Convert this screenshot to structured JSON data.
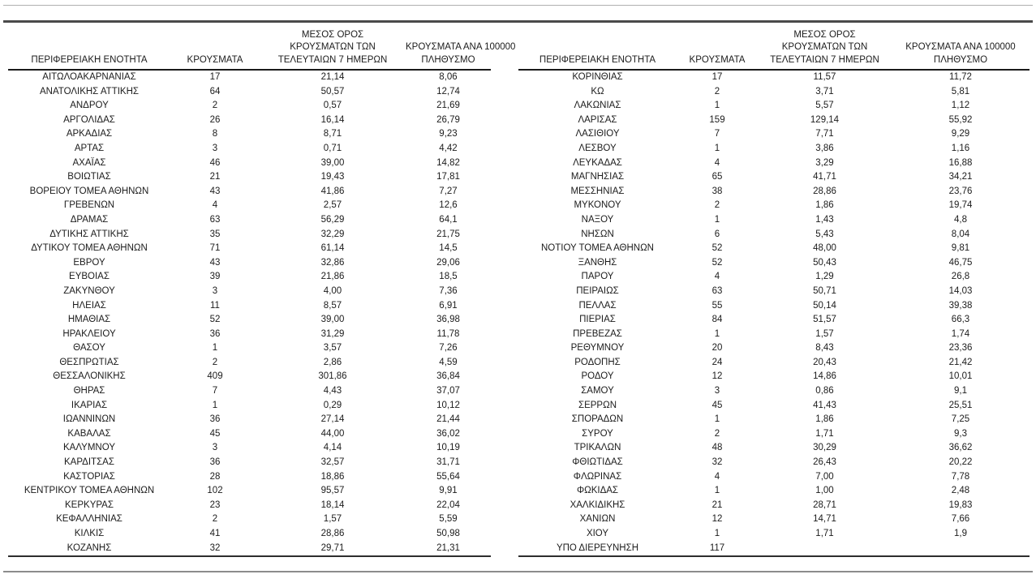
{
  "table": {
    "headers": {
      "region": "ΠΕΡΙΦΕΡΕΙΑΚΗ ΕΝΟΤΗΤΑ",
      "cases": "ΚΡΟΥΣΜΑΤΑ",
      "avg7_lines": [
        "ΜΕΣΟΣ ΟΡΟΣ",
        "ΚΡΟΥΣΜΑΤΩΝ ΤΩΝ",
        "ΤΕΛΕΥΤΑΙΩΝ 7 ΗΜΕΡΩΝ"
      ],
      "per100k_lines": [
        "ΚΡΟΥΣΜΑΤΑ ΑΝΑ 100000",
        "ΠΛΗΘΥΣΜΟ"
      ]
    },
    "left_rows": [
      [
        "ΑΙΤΩΛΟΑΚΑΡΝΑΝΙΑΣ",
        "17",
        "21,14",
        "8,06"
      ],
      [
        "ΑΝΑΤΟΛΙΚΗΣ ΑΤΤΙΚΗΣ",
        "64",
        "50,57",
        "12,74"
      ],
      [
        "ΑΝΔΡΟΥ",
        "2",
        "0,57",
        "21,69"
      ],
      [
        "ΑΡΓΟΛΙΔΑΣ",
        "26",
        "16,14",
        "26,79"
      ],
      [
        "ΑΡΚΑΔΙΑΣ",
        "8",
        "8,71",
        "9,23"
      ],
      [
        "ΑΡΤΑΣ",
        "3",
        "0,71",
        "4,42"
      ],
      [
        "ΑΧΑΪΑΣ",
        "46",
        "39,00",
        "14,82"
      ],
      [
        "ΒΟΙΩΤΙΑΣ",
        "21",
        "19,43",
        "17,81"
      ],
      [
        "ΒΟΡΕΙΟΥ ΤΟΜΕΑ ΑΘΗΝΩΝ",
        "43",
        "41,86",
        "7,27"
      ],
      [
        "ΓΡΕΒΕΝΩΝ",
        "4",
        "2,57",
        "12,6"
      ],
      [
        "ΔΡΑΜΑΣ",
        "63",
        "56,29",
        "64,1"
      ],
      [
        "ΔΥΤΙΚΗΣ ΑΤΤΙΚΗΣ",
        "35",
        "32,29",
        "21,75"
      ],
      [
        "ΔΥΤΙΚΟΥ ΤΟΜΕΑ ΑΘΗΝΩΝ",
        "71",
        "61,14",
        "14,5"
      ],
      [
        "ΕΒΡΟΥ",
        "43",
        "32,86",
        "29,06"
      ],
      [
        "ΕΥΒΟΙΑΣ",
        "39",
        "21,86",
        "18,5"
      ],
      [
        "ΖΑΚΥΝΘΟΥ",
        "3",
        "4,00",
        "7,36"
      ],
      [
        "ΗΛΕΙΑΣ",
        "11",
        "8,57",
        "6,91"
      ],
      [
        "ΗΜΑΘΙΑΣ",
        "52",
        "39,00",
        "36,98"
      ],
      [
        "ΗΡΑΚΛΕΙΟΥ",
        "36",
        "31,29",
        "11,78"
      ],
      [
        "ΘΑΣΟΥ",
        "1",
        "3,57",
        "7,26"
      ],
      [
        "ΘΕΣΠΡΩΤΙΑΣ",
        "2",
        "2,86",
        "4,59"
      ],
      [
        "ΘΕΣΣΑΛΟΝΙΚΗΣ",
        "409",
        "301,86",
        "36,84"
      ],
      [
        "ΘΗΡΑΣ",
        "7",
        "4,43",
        "37,07"
      ],
      [
        "ΙΚΑΡΙΑΣ",
        "1",
        "0,29",
        "10,12"
      ],
      [
        "ΙΩΑΝΝΙΝΩΝ",
        "36",
        "27,14",
        "21,44"
      ],
      [
        "ΚΑΒΑΛΑΣ",
        "45",
        "44,00",
        "36,02"
      ],
      [
        "ΚΑΛΥΜΝΟΥ",
        "3",
        "4,14",
        "10,19"
      ],
      [
        "ΚΑΡΔΙΤΣΑΣ",
        "36",
        "32,57",
        "31,71"
      ],
      [
        "ΚΑΣΤΟΡΙΑΣ",
        "28",
        "18,86",
        "55,64"
      ],
      [
        "ΚΕΝΤΡΙΚΟΥ ΤΟΜΕΑ ΑΘΗΝΩΝ",
        "102",
        "95,57",
        "9,91"
      ],
      [
        "ΚΕΡΚΥΡΑΣ",
        "23",
        "18,14",
        "22,04"
      ],
      [
        "ΚΕΦΑΛΛΗΝΙΑΣ",
        "2",
        "1,57",
        "5,59"
      ],
      [
        "ΚΙΛΚΙΣ",
        "41",
        "28,86",
        "50,98"
      ],
      [
        "ΚΟΖΑΝΗΣ",
        "32",
        "29,71",
        "21,31"
      ]
    ],
    "right_rows": [
      [
        "ΚΟΡΙΝΘΙΑΣ",
        "17",
        "11,57",
        "11,72"
      ],
      [
        "ΚΩ",
        "2",
        "3,71",
        "5,81"
      ],
      [
        "ΛΑΚΩΝΙΑΣ",
        "1",
        "5,57",
        "1,12"
      ],
      [
        "ΛΑΡΙΣΑΣ",
        "159",
        "129,14",
        "55,92"
      ],
      [
        "ΛΑΣΙΘΙΟΥ",
        "7",
        "7,71",
        "9,29"
      ],
      [
        "ΛΕΣΒΟΥ",
        "1",
        "3,86",
        "1,16"
      ],
      [
        "ΛΕΥΚΑΔΑΣ",
        "4",
        "3,29",
        "16,88"
      ],
      [
        "ΜΑΓΝΗΣΙΑΣ",
        "65",
        "41,71",
        "34,21"
      ],
      [
        "ΜΕΣΣΗΝΙΑΣ",
        "38",
        "28,86",
        "23,76"
      ],
      [
        "ΜΥΚΟΝΟΥ",
        "2",
        "1,86",
        "19,74"
      ],
      [
        "ΝΑΞΟΥ",
        "1",
        "1,43",
        "4,8"
      ],
      [
        "ΝΗΣΩΝ",
        "6",
        "5,43",
        "8,04"
      ],
      [
        "ΝΟΤΙΟΥ ΤΟΜΕΑ ΑΘΗΝΩΝ",
        "52",
        "48,00",
        "9,81"
      ],
      [
        "ΞΑΝΘΗΣ",
        "52",
        "50,43",
        "46,75"
      ],
      [
        "ΠΑΡΟΥ",
        "4",
        "1,29",
        "26,8"
      ],
      [
        "ΠΕΙΡΑΙΩΣ",
        "63",
        "50,71",
        "14,03"
      ],
      [
        "ΠΕΛΛΑΣ",
        "55",
        "50,14",
        "39,38"
      ],
      [
        "ΠΙΕΡΙΑΣ",
        "84",
        "51,57",
        "66,3"
      ],
      [
        "ΠΡΕΒΕΖΑΣ",
        "1",
        "1,57",
        "1,74"
      ],
      [
        "ΡΕΘΥΜΝΟΥ",
        "20",
        "8,43",
        "23,36"
      ],
      [
        "ΡΟΔΟΠΗΣ",
        "24",
        "20,43",
        "21,42"
      ],
      [
        "ΡΟΔΟΥ",
        "12",
        "14,86",
        "10,01"
      ],
      [
        "ΣΑΜΟΥ",
        "3",
        "0,86",
        "9,1"
      ],
      [
        "ΣΕΡΡΩΝ",
        "45",
        "41,43",
        "25,51"
      ],
      [
        "ΣΠΟΡΑΔΩΝ",
        "1",
        "1,86",
        "7,25"
      ],
      [
        "ΣΥΡΟΥ",
        "2",
        "1,71",
        "9,3"
      ],
      [
        "ΤΡΙΚΑΛΩΝ",
        "48",
        "30,29",
        "36,62"
      ],
      [
        "ΦΘΙΩΤΙΔΑΣ",
        "32",
        "26,43",
        "20,22"
      ],
      [
        "ΦΛΩΡΙΝΑΣ",
        "4",
        "7,00",
        "7,78"
      ],
      [
        "ΦΩΚΙΔΑΣ",
        "1",
        "1,00",
        "2,48"
      ],
      [
        "ΧΑΛΚΙΔΙΚΗΣ",
        "21",
        "28,71",
        "19,83"
      ],
      [
        "ΧΑΝΙΩΝ",
        "12",
        "14,71",
        "7,66"
      ],
      [
        "ΧΙΟΥ",
        "1",
        "1,71",
        "1,9"
      ],
      [
        "ΥΠΟ ΔΙΕΡΕΥΝΗΣΗ",
        "117",
        "",
        ""
      ]
    ],
    "colors": {
      "text": "#1c1c1c",
      "rule_thin": "#b0b0b0",
      "rule_heavy": "#4a4a4a",
      "header_underline": "#1a1a1a"
    }
  }
}
